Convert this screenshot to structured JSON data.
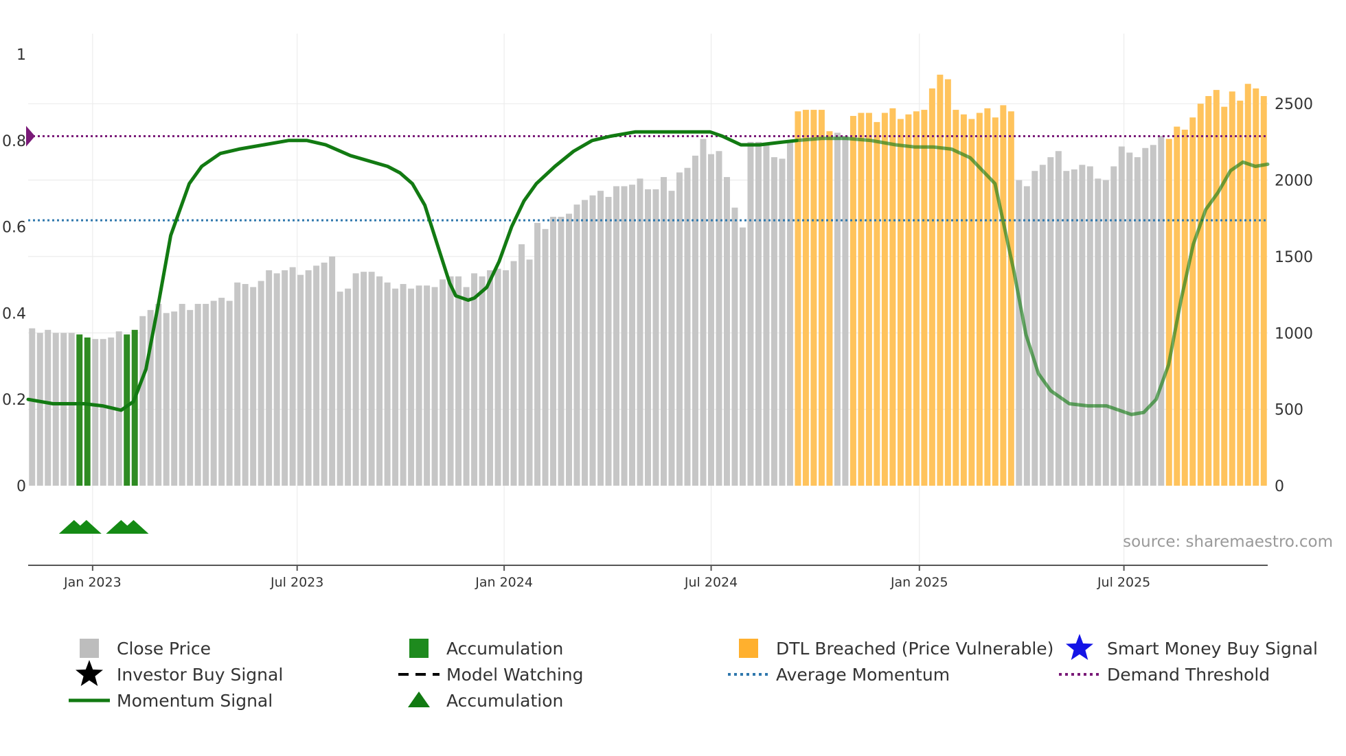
{
  "chart_data": {
    "type": "bar+line",
    "source": "source: sharemaestro.com",
    "colors": {
      "close": "#c6c6c6",
      "accumulation": "#2e8b22",
      "dtl": "#ffc35c",
      "momentum": "#127a12",
      "average": "#2f78ad",
      "demand": "#7a1a78",
      "triangle": "#148a14",
      "grid": "#ececec",
      "axis": "#555555",
      "text": "#333333",
      "smart_money": "#1414e6"
    },
    "left_axis": {
      "min": 0,
      "max": 1,
      "ticks": [
        0,
        0.2,
        0.4,
        0.6,
        0.8,
        1
      ],
      "labels": [
        "0",
        "0.2",
        "0.4",
        "0.6",
        "0.8",
        "1"
      ]
    },
    "right_axis": {
      "min": 0,
      "max": 2824,
      "ticks": [
        0,
        500,
        1000,
        1500,
        2000,
        2500
      ],
      "labels": [
        "0",
        "500",
        "1000",
        "1500",
        "2000",
        "2500"
      ]
    },
    "x_range": [
      0,
      1
    ],
    "x_ticks": [
      {
        "x": 0.052,
        "label": "Jan 2023"
      },
      {
        "x": 0.217,
        "label": "Jul 2023"
      },
      {
        "x": 0.384,
        "label": "Jan 2024"
      },
      {
        "x": 0.551,
        "label": "Jul 2024"
      },
      {
        "x": 0.719,
        "label": "Jan 2025"
      },
      {
        "x": 0.884,
        "label": "Jul 2025"
      }
    ],
    "close_prices": [
      1030,
      1000,
      1020,
      1000,
      1000,
      1000,
      990,
      970,
      960,
      960,
      970,
      1010,
      990,
      1020,
      1110,
      1150,
      1190,
      1130,
      1140,
      1190,
      1150,
      1190,
      1190,
      1210,
      1230,
      1210,
      1330,
      1320,
      1300,
      1340,
      1410,
      1390,
      1410,
      1430,
      1380,
      1410,
      1440,
      1460,
      1500,
      1270,
      1290,
      1390,
      1400,
      1400,
      1370,
      1330,
      1290,
      1320,
      1290,
      1310,
      1310,
      1300,
      1350,
      1370,
      1370,
      1300,
      1390,
      1370,
      1410,
      1420,
      1410,
      1470,
      1580,
      1480,
      1720,
      1680,
      1760,
      1760,
      1780,
      1840,
      1870,
      1900,
      1930,
      1890,
      1960,
      1960,
      1970,
      2010,
      1940,
      1940,
      2020,
      1930,
      2050,
      2080,
      2160,
      2270,
      2170,
      2190,
      2020,
      1820,
      1690,
      2250,
      2250,
      2240,
      2150,
      2140,
      2250,
      2450,
      2460,
      2460,
      2460,
      2320,
      2310,
      2290,
      2420,
      2440,
      2440,
      2380,
      2440,
      2470,
      2400,
      2430,
      2450,
      2460,
      2600,
      2690,
      2660,
      2460,
      2430,
      2400,
      2440,
      2470,
      2410,
      2490,
      2450,
      2000,
      1960,
      2060,
      2100,
      2150,
      2190,
      2060,
      2070,
      2100,
      2090,
      2010,
      2000,
      2090,
      2220,
      2180,
      2150,
      2210,
      2230,
      2290,
      2270,
      2350,
      2330,
      2410,
      2500,
      2550,
      2590,
      2480,
      2580,
      2520,
      2630,
      2600,
      2550
    ],
    "zones": [
      {
        "type": "accumulation",
        "from": 6,
        "to": 7
      },
      {
        "type": "accumulation",
        "from": 12,
        "to": 13
      },
      {
        "type": "dtl",
        "from": 97,
        "to": 101
      },
      {
        "type": "dtl",
        "from": 104,
        "to": 124
      },
      {
        "type": "dtl",
        "from": 144,
        "to": 157
      }
    ],
    "momentum": {
      "x": [
        0,
        0.02,
        0.045,
        0.06,
        0.075,
        0.085,
        0.095,
        0.105,
        0.115,
        0.13,
        0.14,
        0.155,
        0.17,
        0.19,
        0.21,
        0.225,
        0.24,
        0.26,
        0.29,
        0.3,
        0.31,
        0.32,
        0.33,
        0.34,
        0.345,
        0.355,
        0.36,
        0.37,
        0.38,
        0.39,
        0.4,
        0.41,
        0.425,
        0.44,
        0.455,
        0.47,
        0.49,
        0.51,
        0.53,
        0.55,
        0.56,
        0.575,
        0.59,
        0.605,
        0.62,
        0.64,
        0.66,
        0.68,
        0.7,
        0.715,
        0.73,
        0.745,
        0.76,
        0.78,
        0.795,
        0.805,
        0.815,
        0.825,
        0.84,
        0.855,
        0.87,
        0.88,
        0.89,
        0.9,
        0.91,
        0.92,
        0.93,
        0.94,
        0.95,
        0.96,
        0.97,
        0.98,
        0.99,
        1.0
      ],
      "y": [
        0.2,
        0.19,
        0.19,
        0.185,
        0.175,
        0.195,
        0.27,
        0.42,
        0.58,
        0.7,
        0.74,
        0.77,
        0.78,
        0.79,
        0.8,
        0.8,
        0.79,
        0.765,
        0.74,
        0.725,
        0.7,
        0.65,
        0.56,
        0.47,
        0.44,
        0.43,
        0.435,
        0.46,
        0.52,
        0.6,
        0.66,
        0.7,
        0.74,
        0.775,
        0.8,
        0.81,
        0.82,
        0.82,
        0.82,
        0.82,
        0.81,
        0.79,
        0.79,
        0.795,
        0.8,
        0.805,
        0.805,
        0.8,
        0.79,
        0.785,
        0.785,
        0.78,
        0.76,
        0.7,
        0.5,
        0.35,
        0.26,
        0.22,
        0.19,
        0.185,
        0.185,
        0.175,
        0.165,
        0.17,
        0.2,
        0.28,
        0.43,
        0.56,
        0.64,
        0.68,
        0.73,
        0.75,
        0.74,
        0.745
      ],
      "muted_from": 0.62
    },
    "average_momentum": 0.615,
    "demand_threshold": 0.81,
    "triangles": [
      0.037,
      0.047,
      0.075,
      0.085
    ],
    "legend": [
      {
        "symbol": "square",
        "color": "#bdbdbd",
        "label": "Close Price"
      },
      {
        "symbol": "square",
        "color": "#1e8a1e",
        "label": "Accumulation"
      },
      {
        "symbol": "square",
        "color": "#ffb02e",
        "label": "DTL Breached (Price Vulnerable)"
      },
      {
        "symbol": "star",
        "color": "#1414e6",
        "label": "Smart Money Buy Signal"
      },
      {
        "symbol": "star",
        "color": "#000000",
        "label": "Investor Buy Signal"
      },
      {
        "symbol": "dash",
        "color": "#000000",
        "label": "Model Watching"
      },
      {
        "symbol": "dot",
        "color": "#2f78ad",
        "label": "Average Momentum"
      },
      {
        "symbol": "dot",
        "color": "#7a1a78",
        "label": "Demand Threshold"
      },
      {
        "symbol": "line",
        "color": "#127a12",
        "label": "Momentum Signal"
      },
      {
        "symbol": "triangle",
        "color": "#127a12",
        "label": "Accumulation"
      }
    ]
  }
}
